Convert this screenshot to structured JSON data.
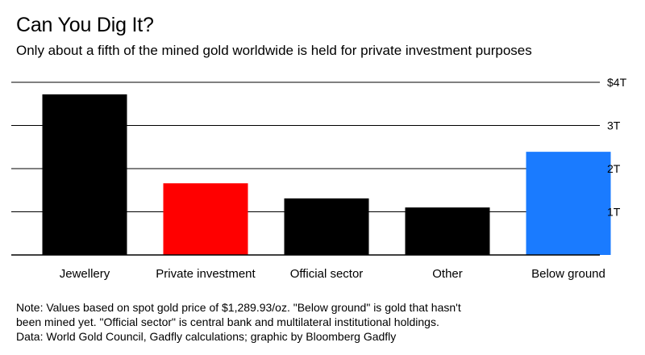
{
  "title": "Can You Dig It?",
  "subtitle": "Only about a fifth of the mined gold worldwide is held for private investment purposes",
  "chart_data": {
    "type": "bar",
    "categories": [
      "Jewellery",
      "Private investment",
      "Official sector",
      "Other",
      "Below ground"
    ],
    "values": [
      3.72,
      1.66,
      1.31,
      1.1,
      2.39
    ],
    "colors": [
      "#000000",
      "#ff0000",
      "#000000",
      "#000000",
      "#1a7bff"
    ],
    "ylim": [
      0,
      4
    ],
    "y_ticks": [
      1,
      2,
      3,
      4
    ],
    "y_tick_labels": [
      "1T",
      "2T",
      "3T",
      "$4T"
    ],
    "y_axis_position": "right",
    "grid": true
  },
  "notes": [
    "Note: Values based on spot gold price of $1,289.93/oz. \"Below ground\" is gold that hasn't",
    "been mined yet. \"Official sector\" is central bank and multilateral institutional holdings.",
    "Data: World Gold Council, Gadfly calculations; graphic by Bloomberg Gadfly"
  ]
}
